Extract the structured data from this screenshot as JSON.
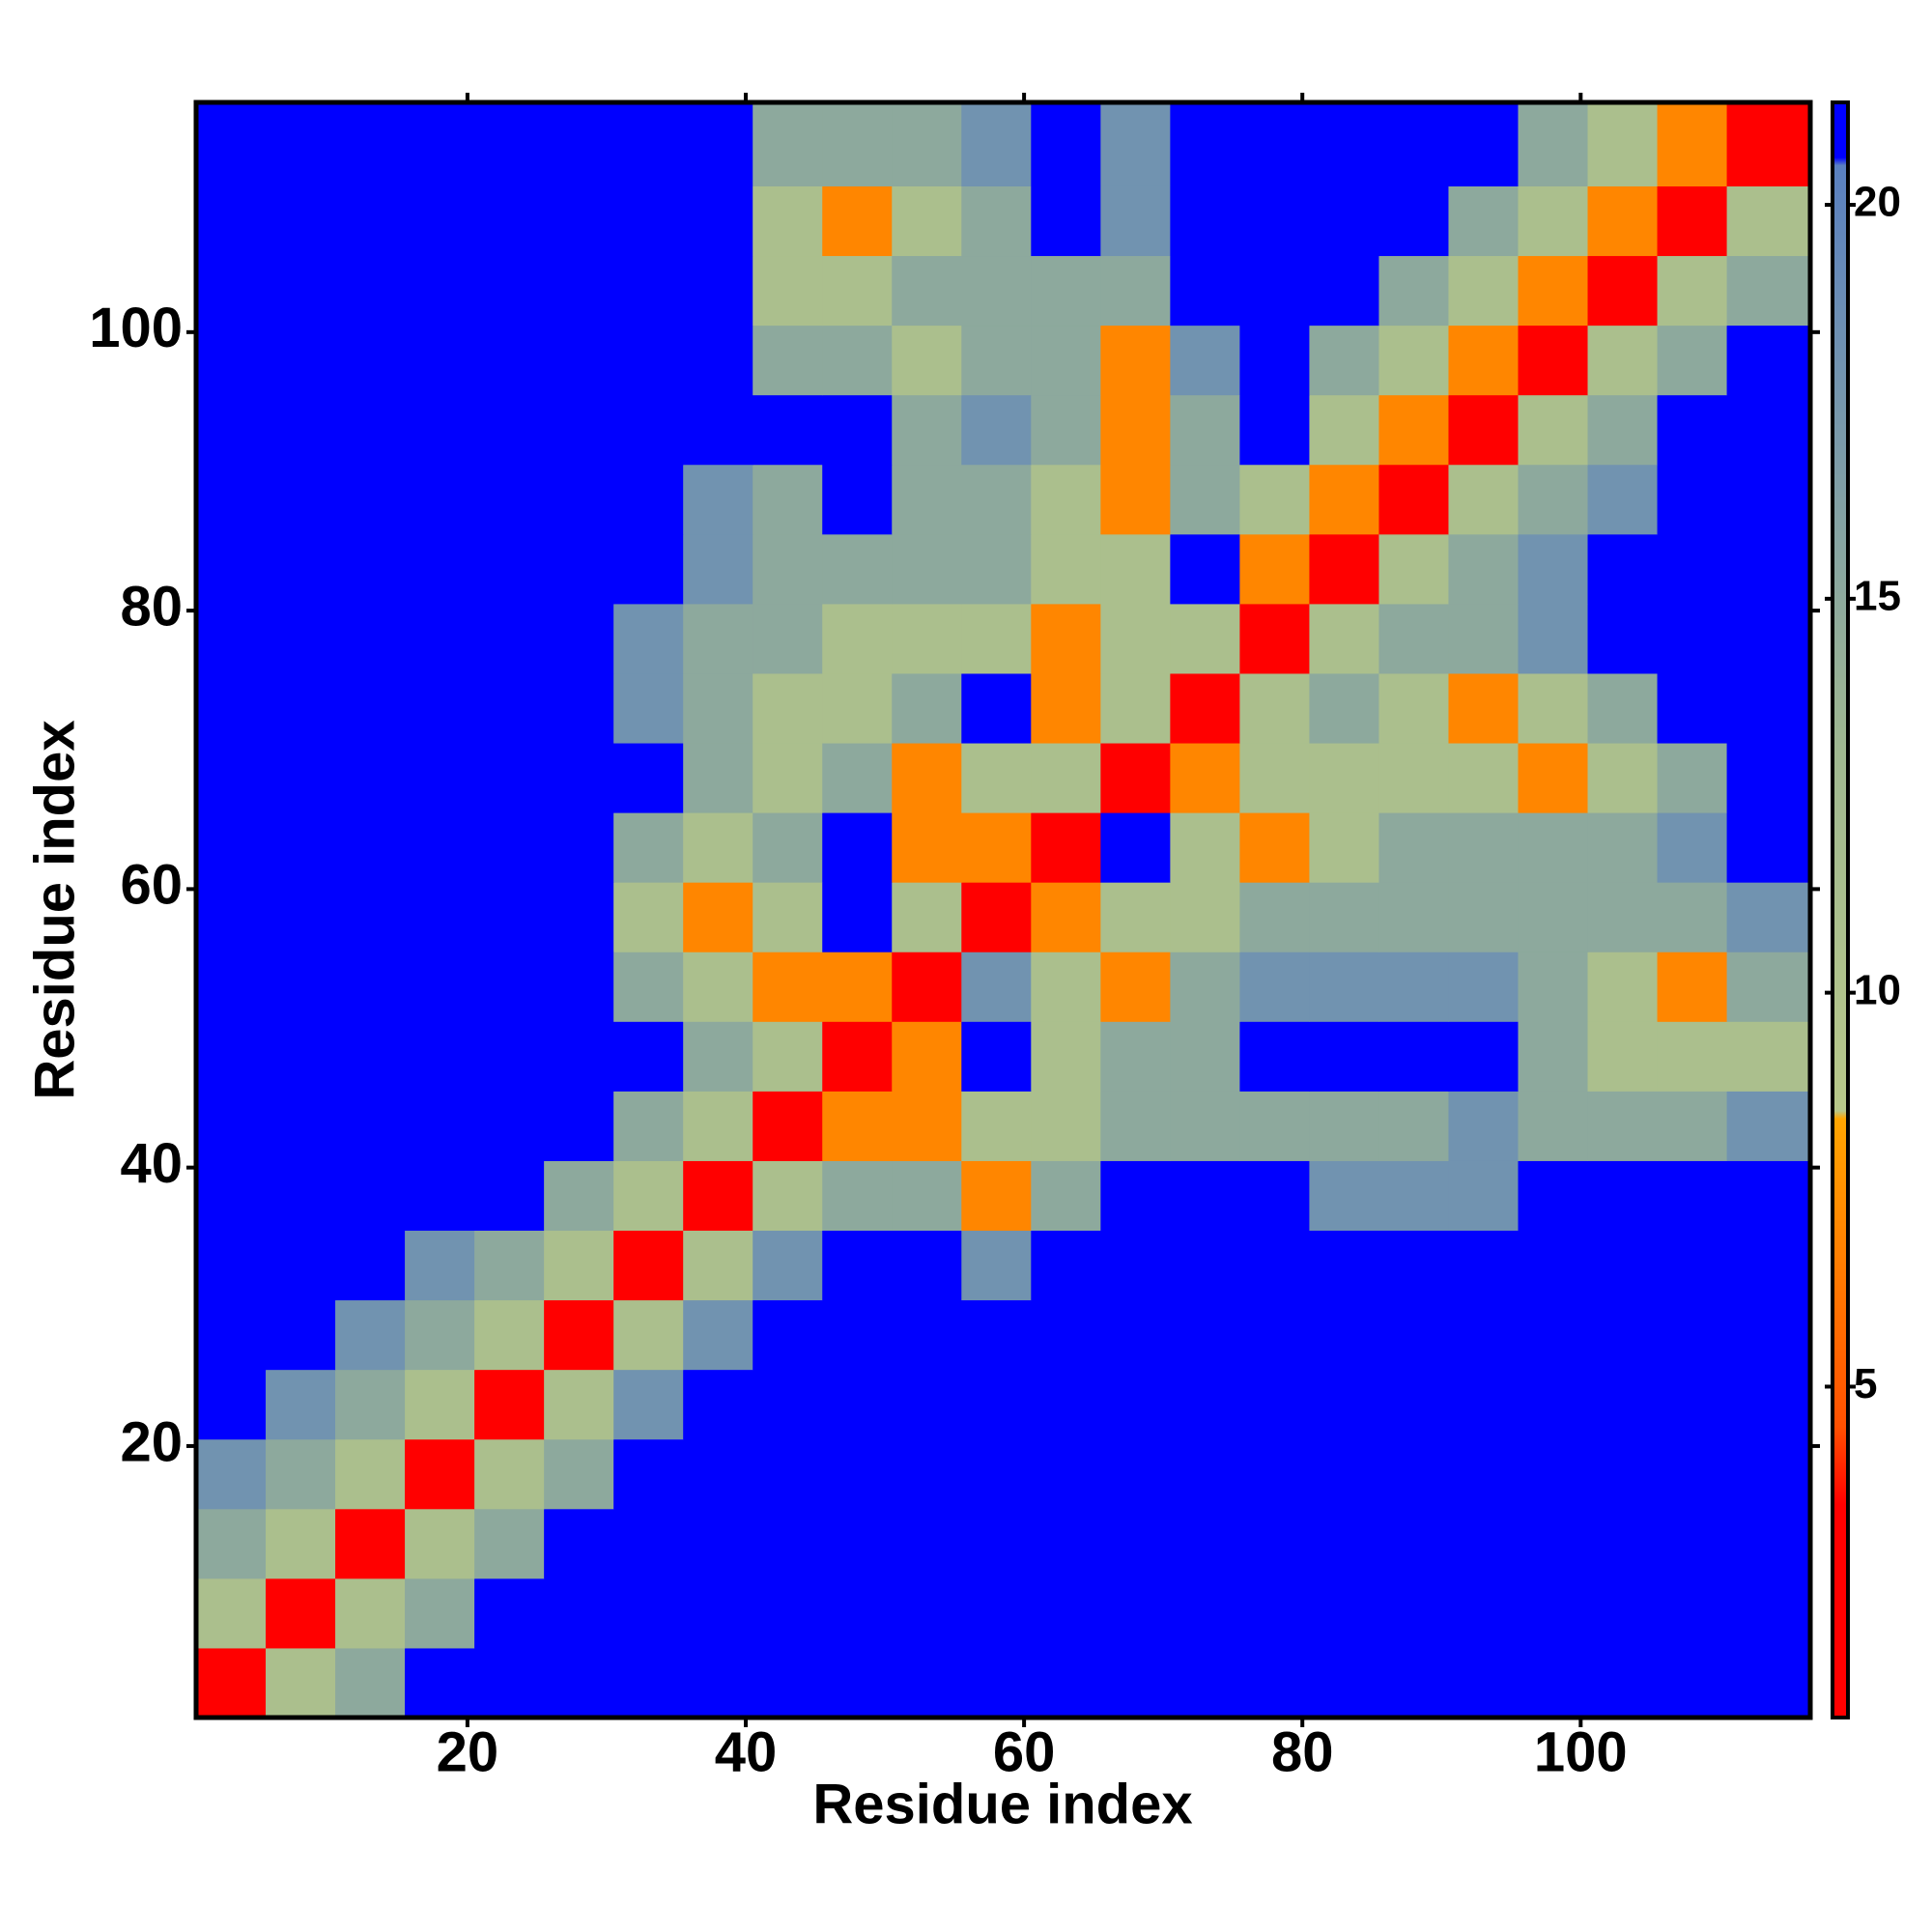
{
  "chart_data": {
    "type": "heatmap",
    "xlabel": "Residue index",
    "ylabel": "Residue index",
    "xbins": [
      0.5,
      5.5,
      10.5,
      15.5,
      20.5,
      25.5,
      30.5,
      35.5,
      40.5,
      45.5,
      50.5,
      55.5,
      60.5,
      65.5,
      70.5,
      75.5,
      80.5,
      85.5,
      90.5,
      95.5,
      100.5,
      105.5,
      110.5,
      116.5
    ],
    "ybins": [
      0.5,
      5.5,
      10.5,
      15.5,
      20.5,
      25.5,
      30.5,
      35.5,
      40.5,
      45.5,
      50.5,
      55.5,
      60.5,
      65.5,
      70.5,
      75.5,
      80.5,
      85.5,
      90.5,
      95.5,
      100.5,
      105.5,
      110.5,
      116.5
    ],
    "xlim": [
      0.5,
      116.5
    ],
    "ylim": [
      0.5,
      116.5
    ],
    "xticks": [
      20,
      40,
      60,
      80,
      100
    ],
    "yticks": [
      20,
      40,
      60,
      80,
      100
    ],
    "clim": [
      0.8,
      21.3
    ],
    "cticks": [
      5,
      10,
      15,
      20
    ],
    "colorscale": [
      [
        0.8,
        "#ff0000"
      ],
      [
        3.5,
        "#ff0000"
      ],
      [
        4.5,
        "#ff5000"
      ],
      [
        8.4,
        "#ffa500"
      ],
      [
        8.5,
        "#b8c88a"
      ],
      [
        13,
        "#a0b890"
      ],
      [
        20.5,
        "#5a80c0"
      ],
      [
        20.6,
        "#0000ff"
      ],
      [
        21.3,
        "#0000ff"
      ]
    ],
    "z": [
      [
        2,
        11,
        15,
        21,
        21,
        21,
        21,
        21,
        21,
        21,
        21,
        21,
        21,
        21,
        21,
        21,
        21,
        21,
        21,
        21,
        21,
        21,
        21
      ],
      [
        11,
        2,
        11,
        15,
        21,
        21,
        21,
        21,
        21,
        21,
        21,
        21,
        21,
        21,
        21,
        21,
        21,
        21,
        21,
        21,
        21,
        21,
        21
      ],
      [
        15,
        11,
        2,
        11,
        15,
        21,
        21,
        21,
        21,
        21,
        21,
        21,
        21,
        21,
        21,
        21,
        21,
        21,
        21,
        21,
        21,
        21,
        21
      ],
      [
        18,
        15,
        11,
        2,
        11,
        15,
        21,
        21,
        21,
        21,
        21,
        21,
        21,
        21,
        21,
        21,
        21,
        21,
        21,
        21,
        21,
        21,
        21
      ],
      [
        21,
        18,
        15,
        11,
        2,
        11,
        18,
        21,
        21,
        21,
        21,
        21,
        21,
        21,
        21,
        21,
        21,
        21,
        21,
        21,
        21,
        21,
        21
      ],
      [
        21,
        21,
        18,
        15,
        11,
        2,
        11,
        18,
        21,
        21,
        21,
        21,
        21,
        21,
        21,
        21,
        21,
        21,
        21,
        21,
        21,
        21,
        21
      ],
      [
        21,
        21,
        21,
        18,
        15,
        11,
        2,
        11,
        18,
        21,
        21,
        18,
        21,
        21,
        21,
        21,
        21,
        21,
        21,
        21,
        21,
        21,
        21
      ],
      [
        21,
        21,
        21,
        21,
        21,
        15,
        11,
        2,
        11,
        15,
        15,
        7,
        15,
        21,
        21,
        21,
        18,
        18,
        18,
        21,
        21,
        21,
        21
      ],
      [
        21,
        21,
        21,
        21,
        21,
        21,
        15,
        11,
        2,
        7,
        7,
        11,
        11,
        15,
        15,
        15,
        15,
        15,
        18,
        15,
        15,
        15,
        18
      ],
      [
        21,
        21,
        21,
        21,
        21,
        21,
        21,
        15,
        11,
        2,
        7,
        21,
        11,
        15,
        15,
        21,
        21,
        21,
        21,
        15,
        11,
        11,
        11
      ],
      [
        21,
        21,
        21,
        21,
        21,
        21,
        15,
        11,
        7,
        7,
        2,
        18,
        11,
        7,
        15,
        18,
        18,
        18,
        18,
        15,
        11,
        7,
        15
      ],
      [
        21,
        21,
        21,
        21,
        21,
        21,
        11,
        7,
        11,
        21,
        11,
        2,
        7,
        11,
        11,
        15,
        15,
        15,
        15,
        15,
        15,
        15,
        18
      ],
      [
        21,
        21,
        21,
        21,
        21,
        21,
        15,
        11,
        15,
        21,
        7,
        7,
        2,
        21,
        11,
        7,
        11,
        15,
        15,
        15,
        15,
        18,
        21
      ],
      [
        21,
        21,
        21,
        21,
        21,
        21,
        21,
        15,
        11,
        15,
        7,
        11,
        11,
        2,
        7,
        11,
        11,
        11,
        11,
        7,
        11,
        15,
        21
      ],
      [
        21,
        21,
        21,
        21,
        21,
        21,
        18,
        15,
        11,
        11,
        15,
        21,
        7,
        11,
        2,
        11,
        15,
        11,
        7,
        11,
        15,
        21,
        21
      ],
      [
        21,
        21,
        21,
        21,
        21,
        21,
        18,
        15,
        15,
        11,
        11,
        11,
        7,
        11,
        11,
        2,
        11,
        15,
        15,
        18,
        21,
        21,
        21
      ],
      [
        21,
        21,
        21,
        21,
        21,
        21,
        21,
        18,
        15,
        15,
        15,
        15,
        11,
        11,
        21,
        7,
        2,
        11,
        15,
        18,
        21,
        21,
        21
      ],
      [
        21,
        21,
        21,
        21,
        21,
        21,
        21,
        18,
        15,
        21,
        15,
        15,
        11,
        7,
        15,
        11,
        7,
        2,
        11,
        15,
        18,
        21,
        21
      ],
      [
        21,
        21,
        21,
        21,
        21,
        21,
        21,
        21,
        21,
        21,
        15,
        18,
        15,
        7,
        15,
        21,
        11,
        7,
        2,
        11,
        15,
        21,
        21
      ],
      [
        21,
        21,
        21,
        21,
        21,
        21,
        21,
        21,
        15,
        15,
        11,
        15,
        15,
        7,
        18,
        21,
        15,
        11,
        7,
        2,
        11,
        15,
        21
      ],
      [
        21,
        21,
        21,
        21,
        21,
        21,
        21,
        21,
        11,
        11,
        15,
        15,
        15,
        15,
        21,
        21,
        21,
        15,
        11,
        7,
        2,
        11,
        15
      ],
      [
        21,
        21,
        21,
        21,
        21,
        21,
        21,
        21,
        11,
        7,
        11,
        15,
        21,
        18,
        21,
        21,
        21,
        21,
        15,
        11,
        7,
        2,
        11
      ],
      [
        21,
        21,
        21,
        21,
        21,
        21,
        21,
        21,
        15,
        15,
        15,
        18,
        21,
        18,
        21,
        21,
        21,
        21,
        21,
        15,
        11,
        7,
        2
      ]
    ]
  }
}
